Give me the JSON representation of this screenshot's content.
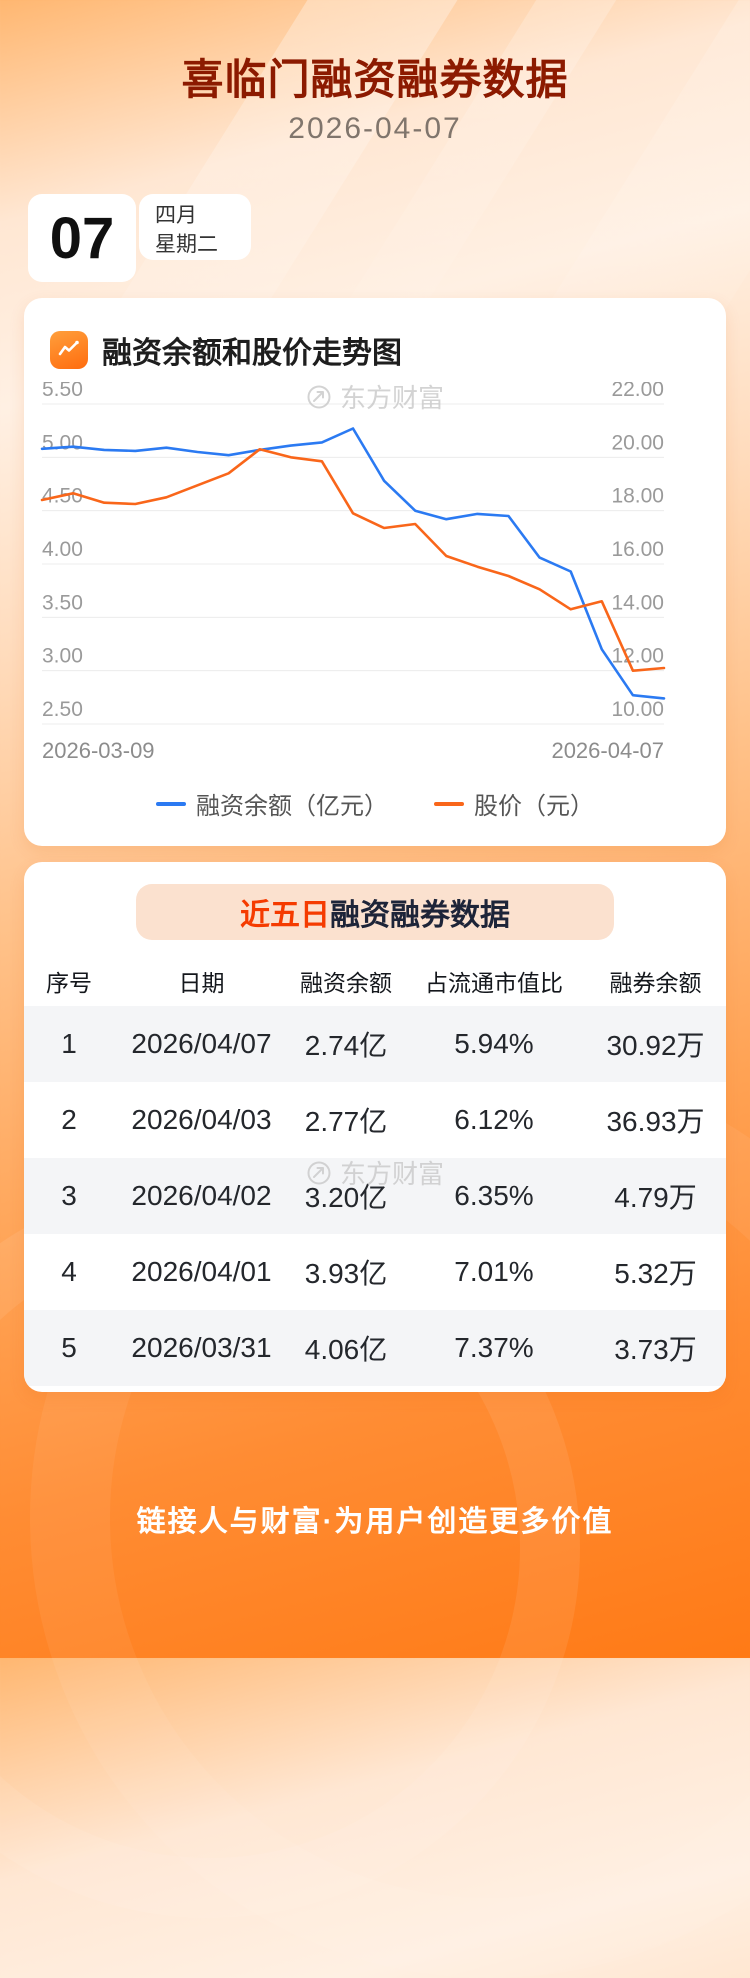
{
  "page": {
    "title": "喜临门融资融券数据",
    "date": "2026-04-07",
    "footer": "链接人与财富·为用户创造更多价值"
  },
  "date_card": {
    "day": "07",
    "month": "四月",
    "weekday": "星期二"
  },
  "chart_card": {
    "heading": "融资余额和股价走势图",
    "watermark": "东方财富"
  },
  "chart_data": {
    "type": "line",
    "title": "融资余额和股价走势图",
    "x": [
      "2026-03-09",
      "2026-03-10",
      "2026-03-11",
      "2026-03-12",
      "2026-03-13",
      "2026-03-16",
      "2026-03-17",
      "2026-03-18",
      "2026-03-19",
      "2026-03-20",
      "2026-03-23",
      "2026-03-24",
      "2026-03-25",
      "2026-03-26",
      "2026-03-27",
      "2026-03-30",
      "2026-03-31",
      "2026-04-01",
      "2026-04-02",
      "2026-04-03",
      "2026-04-07"
    ],
    "series": [
      {
        "name": "融资余额（亿元）",
        "axis": "left",
        "color": "#2b7af2",
        "values": [
          5.08,
          5.1,
          5.07,
          5.06,
          5.09,
          5.05,
          5.02,
          5.07,
          5.11,
          5.14,
          5.27,
          4.78,
          4.5,
          4.42,
          4.47,
          4.45,
          4.06,
          3.93,
          3.2,
          2.77,
          2.74
        ]
      },
      {
        "name": "股价（元）",
        "axis": "right",
        "color": "#f9661a",
        "values": [
          18.4,
          18.65,
          18.3,
          18.25,
          18.5,
          18.95,
          19.4,
          20.3,
          20.0,
          19.85,
          17.9,
          17.35,
          17.5,
          16.3,
          15.9,
          15.55,
          15.05,
          14.3,
          14.6,
          12.0,
          12.1
        ]
      }
    ],
    "left_axis": {
      "range": [
        2.5,
        5.5
      ],
      "tick_labels": [
        "5.50",
        "5.00",
        "4.50",
        "4.00",
        "3.50",
        "3.00",
        "2.50"
      ]
    },
    "right_axis": {
      "range": [
        10.0,
        22.0
      ],
      "tick_labels": [
        "22.00",
        "20.00",
        "18.00",
        "16.00",
        "14.00",
        "12.00",
        "10.00"
      ]
    },
    "x_labels": [
      "2026-03-09",
      "2026-04-07"
    ],
    "grid": true,
    "legend_position": "bottom"
  },
  "table_card": {
    "title_highlight": "近五日",
    "title_rest": "融资融券数据",
    "watermark": "东方财富",
    "columns": [
      "序号",
      "日期",
      "融资余额",
      "占流通市值比",
      "融券余额"
    ],
    "rows": [
      [
        "1",
        "2026/04/07",
        "2.74亿",
        "5.94%",
        "30.92万"
      ],
      [
        "2",
        "2026/04/03",
        "2.77亿",
        "6.12%",
        "36.93万"
      ],
      [
        "3",
        "2026/04/02",
        "3.20亿",
        "6.35%",
        "4.79万"
      ],
      [
        "4",
        "2026/04/01",
        "3.93亿",
        "7.01%",
        "5.32万"
      ],
      [
        "5",
        "2026/03/31",
        "4.06亿",
        "7.37%",
        "3.73万"
      ]
    ]
  },
  "colors": {
    "title": "#8c1a00",
    "highlight": "#f53b00",
    "line_blue": "#2b7af2",
    "line_orange": "#f9661a",
    "background_orange": "#ff7a16"
  }
}
